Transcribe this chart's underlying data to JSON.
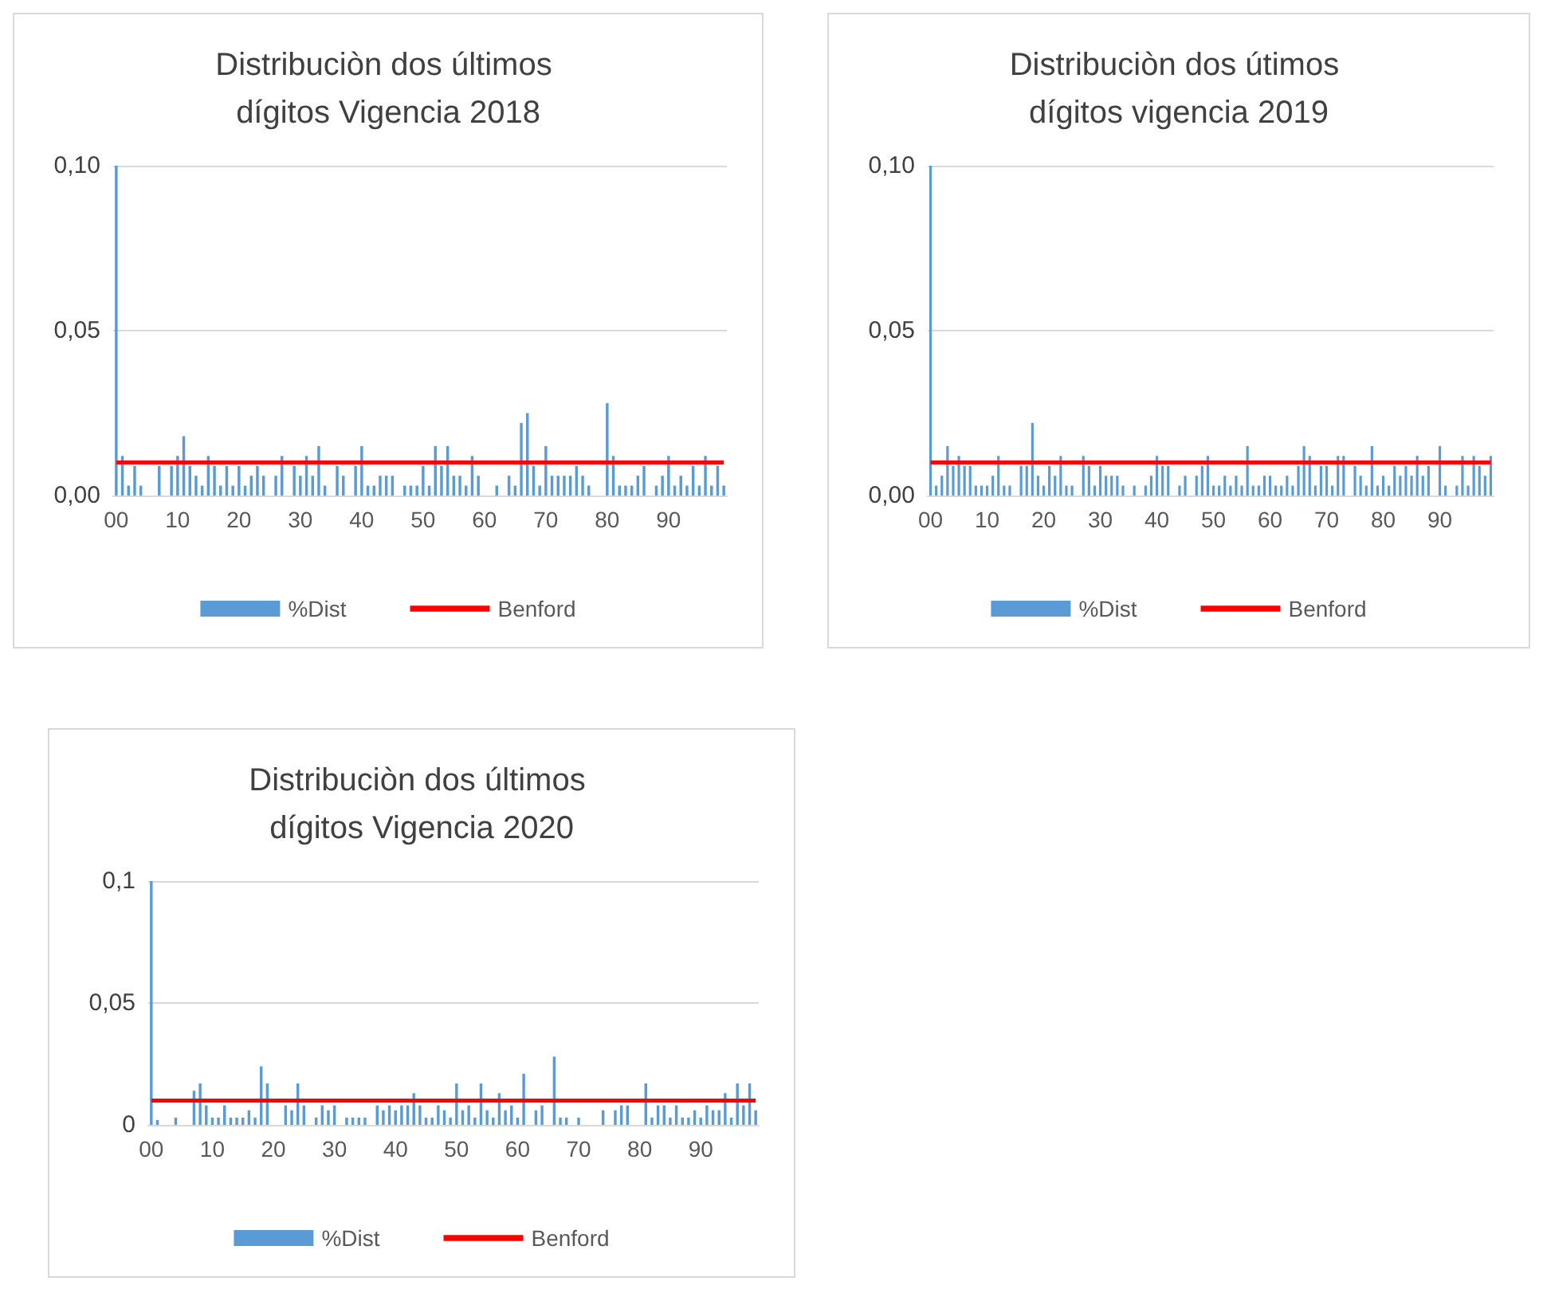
{
  "chart_data": [
    {
      "type": "bar",
      "title": "Distribuciòn dos últimos dígitos Vigencia 2018",
      "categories": [
        "00",
        null,
        null,
        null,
        null,
        null,
        null,
        null,
        null,
        null,
        "10",
        null,
        null,
        null,
        null,
        null,
        null,
        null,
        null,
        null,
        "20",
        null,
        null,
        null,
        null,
        null,
        null,
        null,
        null,
        null,
        "30",
        null,
        null,
        null,
        null,
        null,
        null,
        null,
        null,
        null,
        "40",
        null,
        null,
        null,
        null,
        null,
        null,
        null,
        null,
        null,
        "50",
        null,
        null,
        null,
        null,
        null,
        null,
        null,
        null,
        null,
        "60",
        null,
        null,
        null,
        null,
        null,
        null,
        null,
        null,
        null,
        "70",
        null,
        null,
        null,
        null,
        null,
        null,
        null,
        null,
        null,
        "80",
        null,
        null,
        null,
        null,
        null,
        null,
        null,
        null,
        null,
        "90",
        null,
        null,
        null,
        null,
        null,
        null,
        null,
        null,
        null
      ],
      "series": [
        {
          "name": "%Dist",
          "color": "#5b9bd5",
          "values": [
            0.1,
            0.012,
            0.003,
            0.009,
            0.003,
            0,
            0,
            0.009,
            0,
            0.009,
            0.012,
            0.018,
            0.009,
            0.006,
            0.003,
            0.012,
            0.009,
            0.003,
            0.009,
            0.003,
            0.009,
            0.003,
            0.006,
            0.009,
            0.006,
            0,
            0.006,
            0.012,
            0,
            0.009,
            0.006,
            0.012,
            0.006,
            0.015,
            0.003,
            0,
            0.009,
            0.006,
            0,
            0.009,
            0.015,
            0.003,
            0.003,
            0.006,
            0.006,
            0.006,
            0,
            0.003,
            0.003,
            0.003,
            0.009,
            0.003,
            0.015,
            0.009,
            0.015,
            0.006,
            0.006,
            0.003,
            0.012,
            0.006,
            0,
            0,
            0.003,
            0,
            0.006,
            0.003,
            0.022,
            0.025,
            0.009,
            0.003,
            0.015,
            0.006,
            0.006,
            0.006,
            0.006,
            0.009,
            0.006,
            0.003,
            0,
            0,
            0.028,
            0.012,
            0.003,
            0.003,
            0.003,
            0.006,
            0.009,
            0,
            0.003,
            0.006,
            0.012,
            0.003,
            0.006,
            0.003,
            0.009,
            0.003,
            0.012,
            0.003,
            0.009,
            0.003
          ]
        },
        {
          "name": "Benford",
          "type": "line",
          "color": "#ff0000",
          "values": [
            0.01,
            0.01,
            0.01,
            0.01,
            0.01,
            0.01,
            0.01,
            0.01,
            0.01,
            0.01,
            0.01,
            0.01,
            0.01,
            0.01,
            0.01,
            0.01,
            0.01,
            0.01,
            0.01,
            0.01,
            0.01,
            0.01,
            0.01,
            0.01,
            0.01,
            0.01,
            0.01,
            0.01,
            0.01,
            0.01,
            0.01,
            0.01,
            0.01,
            0.01,
            0.01,
            0.01,
            0.01,
            0.01,
            0.01,
            0.01,
            0.01,
            0.01,
            0.01,
            0.01,
            0.01,
            0.01,
            0.01,
            0.01,
            0.01,
            0.01,
            0.01,
            0.01,
            0.01,
            0.01,
            0.01,
            0.01,
            0.01,
            0.01,
            0.01,
            0.01,
            0.01,
            0.01,
            0.01,
            0.01,
            0.01,
            0.01,
            0.01,
            0.01,
            0.01,
            0.01,
            0.01,
            0.01,
            0.01,
            0.01,
            0.01,
            0.01,
            0.01,
            0.01,
            0.01,
            0.01,
            0.01,
            0.01,
            0.01,
            0.01,
            0.01,
            0.01,
            0.01,
            0.01,
            0.01,
            0.01,
            0.01,
            0.01,
            0.01,
            0.01,
            0.01,
            0.01,
            0.01,
            0.01,
            0.01,
            0.01
          ]
        }
      ],
      "ylim": [
        0,
        0.1
      ],
      "yticks": [
        {
          "value": 0,
          "label": "0,00"
        },
        {
          "value": 0.05,
          "label": "0,05"
        },
        {
          "value": 0.1,
          "label": "0,10"
        }
      ],
      "grid": "y",
      "legend": "bottom",
      "marker": "none"
    },
    {
      "type": "bar",
      "title": "Distribuciòn dos útimos dígitos vigencia 2019",
      "categories": [
        "00",
        null,
        null,
        null,
        null,
        null,
        null,
        null,
        null,
        null,
        "10",
        null,
        null,
        null,
        null,
        null,
        null,
        null,
        null,
        null,
        "20",
        null,
        null,
        null,
        null,
        null,
        null,
        null,
        null,
        null,
        "30",
        null,
        null,
        null,
        null,
        null,
        null,
        null,
        null,
        null,
        "40",
        null,
        null,
        null,
        null,
        null,
        null,
        null,
        null,
        null,
        "50",
        null,
        null,
        null,
        null,
        null,
        null,
        null,
        null,
        null,
        "60",
        null,
        null,
        null,
        null,
        null,
        null,
        null,
        null,
        null,
        "70",
        null,
        null,
        null,
        null,
        null,
        null,
        null,
        null,
        null,
        "80",
        null,
        null,
        null,
        null,
        null,
        null,
        null,
        null,
        null,
        "90",
        null,
        null,
        null,
        null,
        null,
        null,
        null,
        null,
        null
      ],
      "series": [
        {
          "name": "%Dist",
          "color": "#5b9bd5",
          "values": [
            0.1,
            0.003,
            0.006,
            0.015,
            0.009,
            0.012,
            0.009,
            0.009,
            0.003,
            0.003,
            0.003,
            0.006,
            0.012,
            0.003,
            0.003,
            0,
            0.009,
            0.009,
            0.022,
            0.006,
            0.003,
            0.009,
            0.006,
            0.012,
            0.003,
            0.003,
            0,
            0.012,
            0.009,
            0.003,
            0.009,
            0.006,
            0.006,
            0.006,
            0.003,
            0,
            0.003,
            0,
            0.003,
            0.006,
            0.012,
            0.009,
            0.009,
            0,
            0.003,
            0.006,
            0,
            0.006,
            0.009,
            0.012,
            0.003,
            0.003,
            0.006,
            0.003,
            0.006,
            0.003,
            0.015,
            0.003,
            0.003,
            0.006,
            0.006,
            0.003,
            0.003,
            0.006,
            0.003,
            0.009,
            0.015,
            0.012,
            0.003,
            0.009,
            0.009,
            0.003,
            0.012,
            0.012,
            0,
            0.009,
            0.006,
            0.003,
            0.015,
            0.003,
            0.006,
            0.003,
            0.009,
            0.006,
            0.009,
            0.006,
            0.012,
            0.006,
            0.009,
            0,
            0.015,
            0.003,
            0,
            0.003,
            0.012,
            0.003,
            0.012,
            0.009,
            0.006,
            0.012
          ]
        },
        {
          "name": "Benford",
          "type": "line",
          "color": "#ff0000",
          "values": [
            0.01,
            0.01,
            0.01,
            0.01,
            0.01,
            0.01,
            0.01,
            0.01,
            0.01,
            0.01,
            0.01,
            0.01,
            0.01,
            0.01,
            0.01,
            0.01,
            0.01,
            0.01,
            0.01,
            0.01,
            0.01,
            0.01,
            0.01,
            0.01,
            0.01,
            0.01,
            0.01,
            0.01,
            0.01,
            0.01,
            0.01,
            0.01,
            0.01,
            0.01,
            0.01,
            0.01,
            0.01,
            0.01,
            0.01,
            0.01,
            0.01,
            0.01,
            0.01,
            0.01,
            0.01,
            0.01,
            0.01,
            0.01,
            0.01,
            0.01,
            0.01,
            0.01,
            0.01,
            0.01,
            0.01,
            0.01,
            0.01,
            0.01,
            0.01,
            0.01,
            0.01,
            0.01,
            0.01,
            0.01,
            0.01,
            0.01,
            0.01,
            0.01,
            0.01,
            0.01,
            0.01,
            0.01,
            0.01,
            0.01,
            0.01,
            0.01,
            0.01,
            0.01,
            0.01,
            0.01,
            0.01,
            0.01,
            0.01,
            0.01,
            0.01,
            0.01,
            0.01,
            0.01,
            0.01,
            0.01,
            0.01,
            0.01,
            0.01,
            0.01,
            0.01,
            0.01,
            0.01,
            0.01,
            0.01,
            0.01
          ]
        }
      ],
      "ylim": [
        0,
        0.1
      ],
      "yticks": [
        {
          "value": 0,
          "label": "0,00"
        },
        {
          "value": 0.05,
          "label": "0,05"
        },
        {
          "value": 0.1,
          "label": "0,10"
        }
      ],
      "grid": "y",
      "legend": "bottom",
      "marker": "none"
    },
    {
      "type": "bar",
      "title": "Distribuciòn dos últimos dígitos Vigencia 2020",
      "categories": [
        "00",
        null,
        null,
        null,
        null,
        null,
        null,
        null,
        null,
        null,
        "10",
        null,
        null,
        null,
        null,
        null,
        null,
        null,
        null,
        null,
        "20",
        null,
        null,
        null,
        null,
        null,
        null,
        null,
        null,
        null,
        "30",
        null,
        null,
        null,
        null,
        null,
        null,
        null,
        null,
        null,
        "40",
        null,
        null,
        null,
        null,
        null,
        null,
        null,
        null,
        null,
        "50",
        null,
        null,
        null,
        null,
        null,
        null,
        null,
        null,
        null,
        "60",
        null,
        null,
        null,
        null,
        null,
        null,
        null,
        null,
        null,
        "70",
        null,
        null,
        null,
        null,
        null,
        null,
        null,
        null,
        null,
        "80",
        null,
        null,
        null,
        null,
        null,
        null,
        null,
        null,
        null,
        "90",
        null,
        null,
        null,
        null,
        null,
        null,
        null,
        null,
        null
      ],
      "series": [
        {
          "name": "%Dist",
          "color": "#5b9bd5",
          "values": [
            0.1,
            0.002,
            0,
            0,
            0.003,
            0,
            0,
            0.014,
            0.017,
            0.008,
            0.003,
            0.003,
            0.008,
            0.003,
            0.003,
            0.003,
            0.006,
            0.003,
            0.024,
            0.017,
            0,
            0,
            0.008,
            0.006,
            0.017,
            0.008,
            0,
            0.003,
            0.008,
            0.006,
            0.008,
            0,
            0.003,
            0.003,
            0.003,
            0.003,
            0,
            0.008,
            0.006,
            0.008,
            0.006,
            0.008,
            0.008,
            0.013,
            0.008,
            0.003,
            0.003,
            0.008,
            0.006,
            0.003,
            0.017,
            0.006,
            0.008,
            0.003,
            0.017,
            0.006,
            0.003,
            0.013,
            0.006,
            0.008,
            0.003,
            0.021,
            0,
            0.006,
            0.008,
            0,
            0.028,
            0.003,
            0.003,
            0,
            0.003,
            0,
            0,
            0,
            0.006,
            0,
            0.006,
            0.008,
            0.008,
            0,
            0,
            0.017,
            0.003,
            0.008,
            0.008,
            0.003,
            0.008,
            0.003,
            0.003,
            0.006,
            0.003,
            0.008,
            0.006,
            0.006,
            0.013,
            0.003,
            0.017,
            0.008,
            0.017,
            0.006
          ]
        },
        {
          "name": "Benford",
          "type": "line",
          "color": "#ff0000",
          "values": [
            0.01,
            0.01,
            0.01,
            0.01,
            0.01,
            0.01,
            0.01,
            0.01,
            0.01,
            0.01,
            0.01,
            0.01,
            0.01,
            0.01,
            0.01,
            0.01,
            0.01,
            0.01,
            0.01,
            0.01,
            0.01,
            0.01,
            0.01,
            0.01,
            0.01,
            0.01,
            0.01,
            0.01,
            0.01,
            0.01,
            0.01,
            0.01,
            0.01,
            0.01,
            0.01,
            0.01,
            0.01,
            0.01,
            0.01,
            0.01,
            0.01,
            0.01,
            0.01,
            0.01,
            0.01,
            0.01,
            0.01,
            0.01,
            0.01,
            0.01,
            0.01,
            0.01,
            0.01,
            0.01,
            0.01,
            0.01,
            0.01,
            0.01,
            0.01,
            0.01,
            0.01,
            0.01,
            0.01,
            0.01,
            0.01,
            0.01,
            0.01,
            0.01,
            0.01,
            0.01,
            0.01,
            0.01,
            0.01,
            0.01,
            0.01,
            0.01,
            0.01,
            0.01,
            0.01,
            0.01,
            0.01,
            0.01,
            0.01,
            0.01,
            0.01,
            0.01,
            0.01,
            0.01,
            0.01,
            0.01,
            0.01,
            0.01,
            0.01,
            0.01,
            0.01,
            0.01,
            0.01,
            0.01,
            0.01,
            0.01
          ]
        }
      ],
      "ylim": [
        0,
        0.1
      ],
      "yticks": [
        {
          "value": 0,
          "label": "0"
        },
        {
          "value": 0.05,
          "label": "0,05"
        },
        {
          "value": 0.1,
          "label": "0,1"
        }
      ],
      "grid": "y",
      "legend": "bottom",
      "marker": "none"
    }
  ]
}
